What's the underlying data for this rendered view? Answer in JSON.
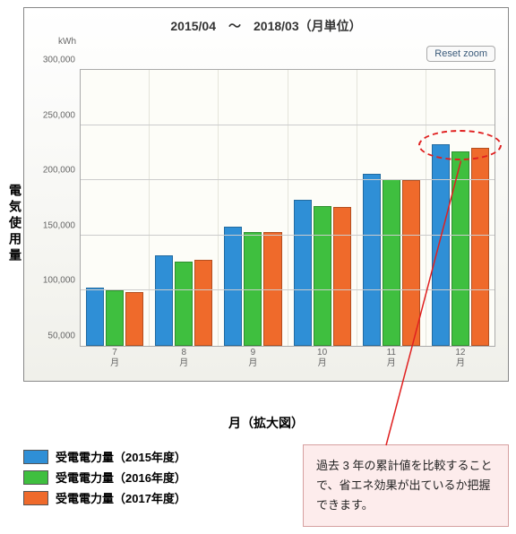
{
  "chart": {
    "title": "2015/04　〜　2018/03（月単位）",
    "y_unit": "kWh",
    "reset_zoom_label": "Reset zoom",
    "y_outer_label": "電気使用量",
    "x_axis_label": "月（拡大図）",
    "type": "bar",
    "ylim": [
      50000,
      300000
    ],
    "yticks": [
      50000,
      100000,
      150000,
      200000,
      250000,
      300000
    ],
    "ytick_labels": [
      "50,000",
      "100,000",
      "150,000",
      "200,000",
      "250,000",
      "300,000"
    ],
    "categories": [
      "7",
      "8",
      "9",
      "10",
      "11",
      "12"
    ],
    "x_sub_label": "月",
    "series": [
      {
        "name": "受電電力量（2015年度）",
        "color": "#2f8fd6",
        "values": [
          103000,
          132000,
          158000,
          182000,
          206000,
          233000
        ]
      },
      {
        "name": "受電電力量（2016年度）",
        "color": "#3fbf3f",
        "values": [
          100000,
          126000,
          153000,
          177000,
          201000,
          226000
        ]
      },
      {
        "name": "受電電力量（2017年度）",
        "color": "#ef6a2b",
        "values": [
          99000,
          128000,
          153000,
          176000,
          200000,
          229000
        ]
      }
    ],
    "background_color": "#fdfdf8",
    "grid_color": "#cccccc",
    "highlight": {
      "category_index": 5,
      "color": "#e02020"
    }
  },
  "note": {
    "text": "過去 3 年の累計値を比較することで、省エネ効果が出ているか把握できます。",
    "border_color": "#d6a0a0",
    "background_color": "#fdecec"
  }
}
